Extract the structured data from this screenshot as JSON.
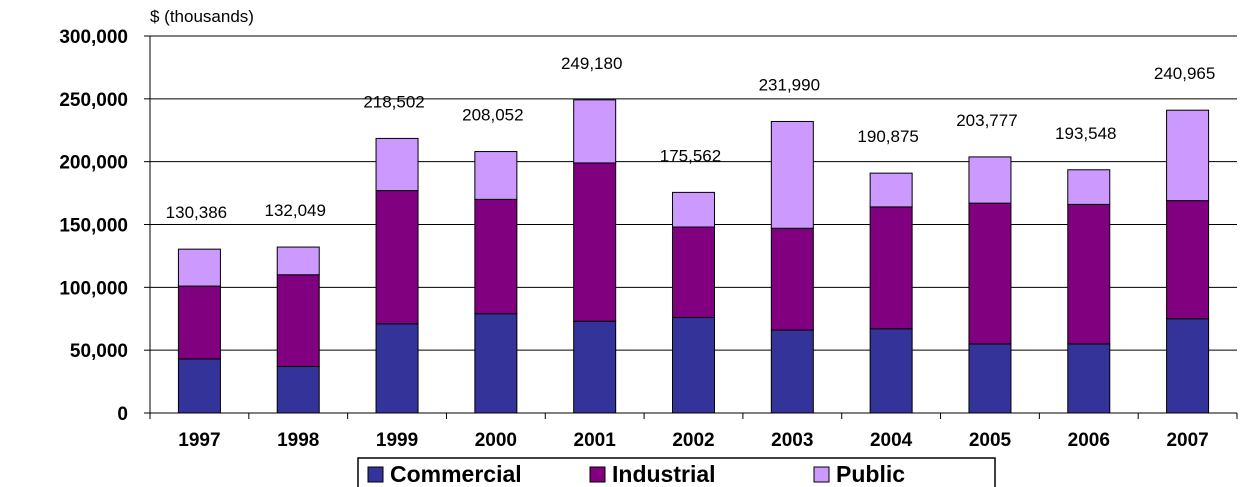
{
  "chart_data": {
    "type": "bar",
    "stacked": true,
    "ylabel": "$ (thousands)",
    "xlabel": "",
    "ylim": [
      0,
      300000
    ],
    "yticks": [
      0,
      50000,
      100000,
      150000,
      200000,
      250000,
      300000
    ],
    "ytick_labels": [
      "0",
      "50,000",
      "100,000",
      "150,000",
      "200,000",
      "250,000",
      "300,000"
    ],
    "grid": true,
    "legend_position": "bottom",
    "categories": [
      "1997",
      "1998",
      "1999",
      "2000",
      "2001",
      "2002",
      "2003",
      "2004",
      "2005",
      "2006",
      "2007"
    ],
    "series": [
      {
        "name": "Commercial",
        "color": "#333399",
        "values": [
          43000,
          37000,
          71000,
          79000,
          73000,
          76000,
          66000,
          67000,
          55000,
          55000,
          75000
        ]
      },
      {
        "name": "Industrial",
        "color": "#800080",
        "values": [
          58000,
          73000,
          106000,
          91000,
          126000,
          72000,
          81000,
          97000,
          112000,
          111000,
          94000
        ]
      },
      {
        "name": "Public",
        "color": "#CC99FF",
        "values": [
          29386,
          22049,
          41502,
          38052,
          50180,
          27562,
          84990,
          26875,
          36777,
          27548,
          71965
        ]
      }
    ],
    "totals": [
      130386,
      132049,
      218502,
      208052,
      249180,
      175562,
      231990,
      190875,
      203777,
      193548,
      240965
    ],
    "total_labels": [
      "130,386",
      "132,049",
      "218,502",
      "208,052",
      "249,180",
      "175,562",
      "231,990",
      "190,875",
      "203,777",
      "193,548",
      "240,965"
    ]
  }
}
